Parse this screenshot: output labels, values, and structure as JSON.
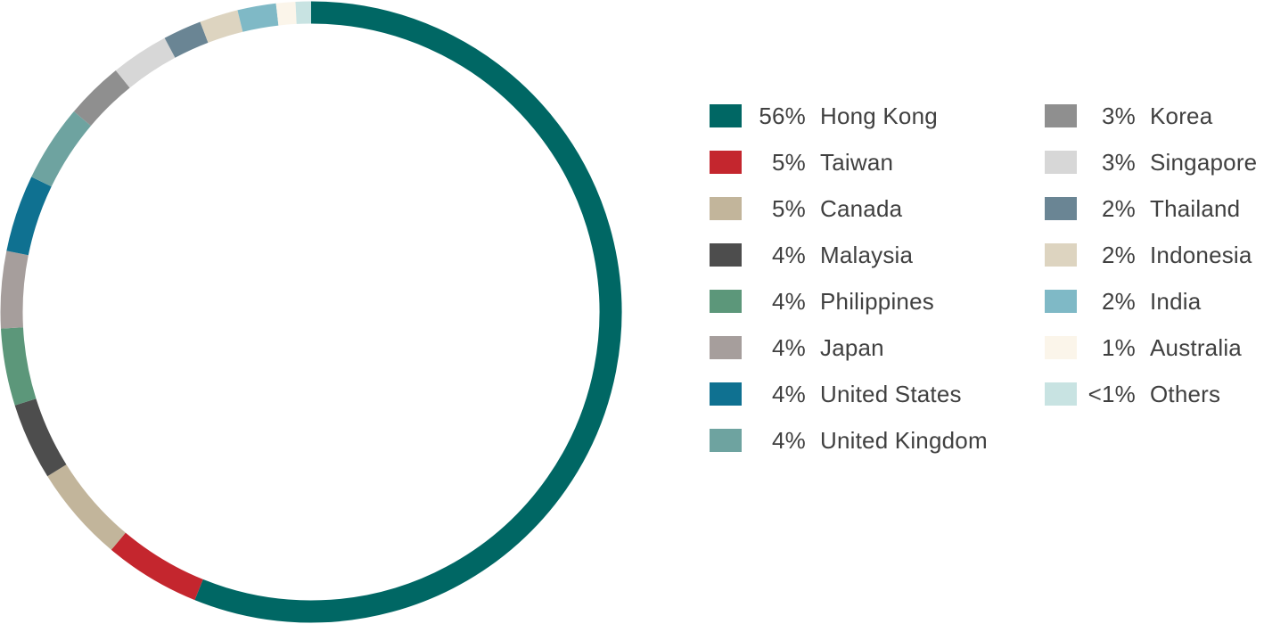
{
  "chart_data": {
    "type": "pie",
    "variant": "donut",
    "title": "",
    "legend_placement": "right",
    "slices": [
      {
        "label": "Hong Kong",
        "display": "56%",
        "value": 56.0,
        "color": "#006764"
      },
      {
        "label": "Taiwan",
        "display": "5%",
        "value": 5.0,
        "color": "#c4262e"
      },
      {
        "label": "Canada",
        "display": "5%",
        "value": 5.0,
        "color": "#c2b59b"
      },
      {
        "label": "Malaysia",
        "display": "4%",
        "value": 4.0,
        "color": "#4d4d4d"
      },
      {
        "label": "Philippines",
        "display": "4%",
        "value": 4.0,
        "color": "#5c977a"
      },
      {
        "label": "Japan",
        "display": "4%",
        "value": 4.0,
        "color": "#a69e9c"
      },
      {
        "label": "United States",
        "display": "4%",
        "value": 4.0,
        "color": "#0f7191"
      },
      {
        "label": "United Kingdom",
        "display": "4%",
        "value": 4.0,
        "color": "#6ea3a0"
      },
      {
        "label": "Korea",
        "display": "3%",
        "value": 3.0,
        "color": "#8f8f8f"
      },
      {
        "label": "Singapore",
        "display": "3%",
        "value": 3.0,
        "color": "#d7d7d7"
      },
      {
        "label": "Thailand",
        "display": "2%",
        "value": 2.0,
        "color": "#6a8594"
      },
      {
        "label": "Indonesia",
        "display": "2%",
        "value": 2.0,
        "color": "#ddd4c0"
      },
      {
        "label": "India",
        "display": "2%",
        "value": 2.0,
        "color": "#7fb9c6"
      },
      {
        "label": "Australia",
        "display": "1%",
        "value": 1.0,
        "color": "#fbf5ea"
      },
      {
        "label": "Others",
        "display": "<1%",
        "value": 0.8,
        "color": "#c8e3e2"
      }
    ]
  }
}
